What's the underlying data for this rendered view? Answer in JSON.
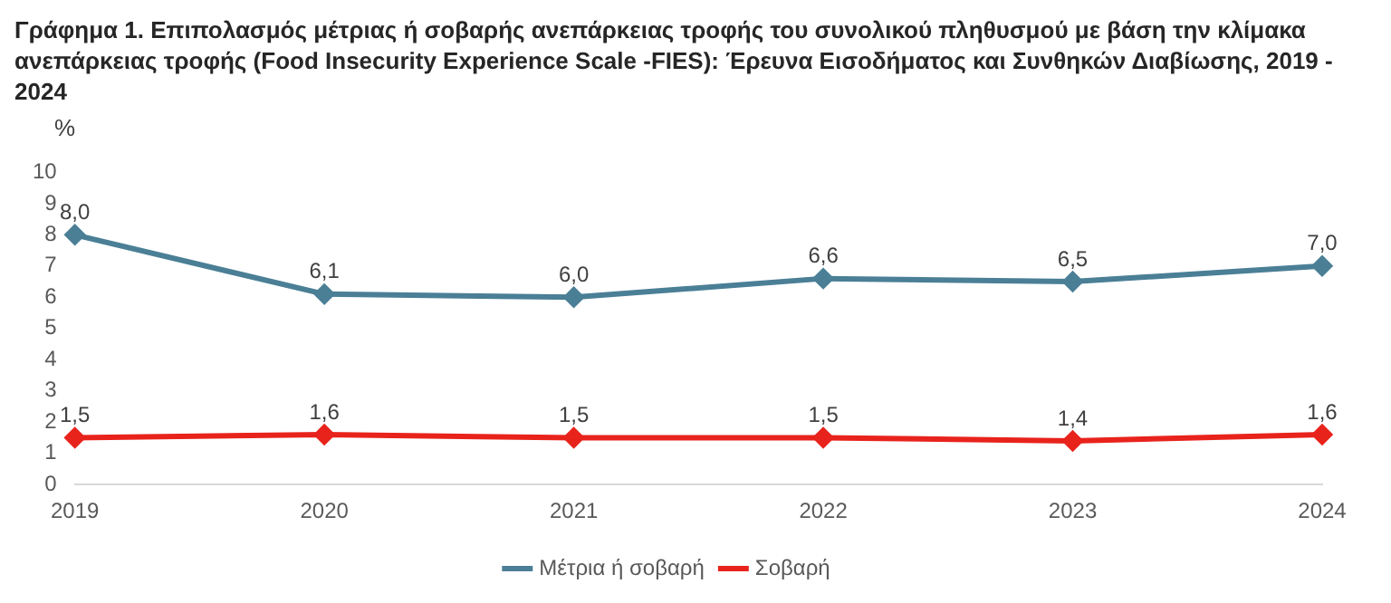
{
  "chart_data": {
    "type": "line",
    "title": "Γράφημα 1. Επιπολασμός μέτριας ή σοβαρής ανεπάρκειας τροφής του συνολικού πληθυσμού με βάση την κλίμακα ανεπάρκειας τροφής (Food Insecurity Experience Scale -FIES): Έρευνα Εισοδήματος και Συνθηκών Διαβίωσης, 2019 - 2024",
    "ylabel": "%",
    "categories": [
      "2019",
      "2020",
      "2021",
      "2022",
      "2023",
      "2024"
    ],
    "series": [
      {
        "name": "Μέτρια ή σοβαρή",
        "color": "#4a7f96",
        "values": [
          8.0,
          6.1,
          6.0,
          6.6,
          6.5,
          7.0
        ],
        "value_labels": [
          "8,0",
          "6,1",
          "6,0",
          "6,6",
          "6,5",
          "7,0"
        ]
      },
      {
        "name": "Σοβαρή",
        "color": "#e8231c",
        "values": [
          1.5,
          1.6,
          1.5,
          1.5,
          1.4,
          1.6
        ],
        "value_labels": [
          "1,5",
          "1,6",
          "1,5",
          "1,5",
          "1,4",
          "1,6"
        ]
      }
    ],
    "ylim": [
      0,
      10
    ],
    "yticks": [
      0,
      1,
      2,
      3,
      4,
      5,
      6,
      7,
      8,
      9,
      10
    ],
    "grid": false,
    "legend": "bottom",
    "marker": "diamond",
    "line_style": "solid"
  }
}
